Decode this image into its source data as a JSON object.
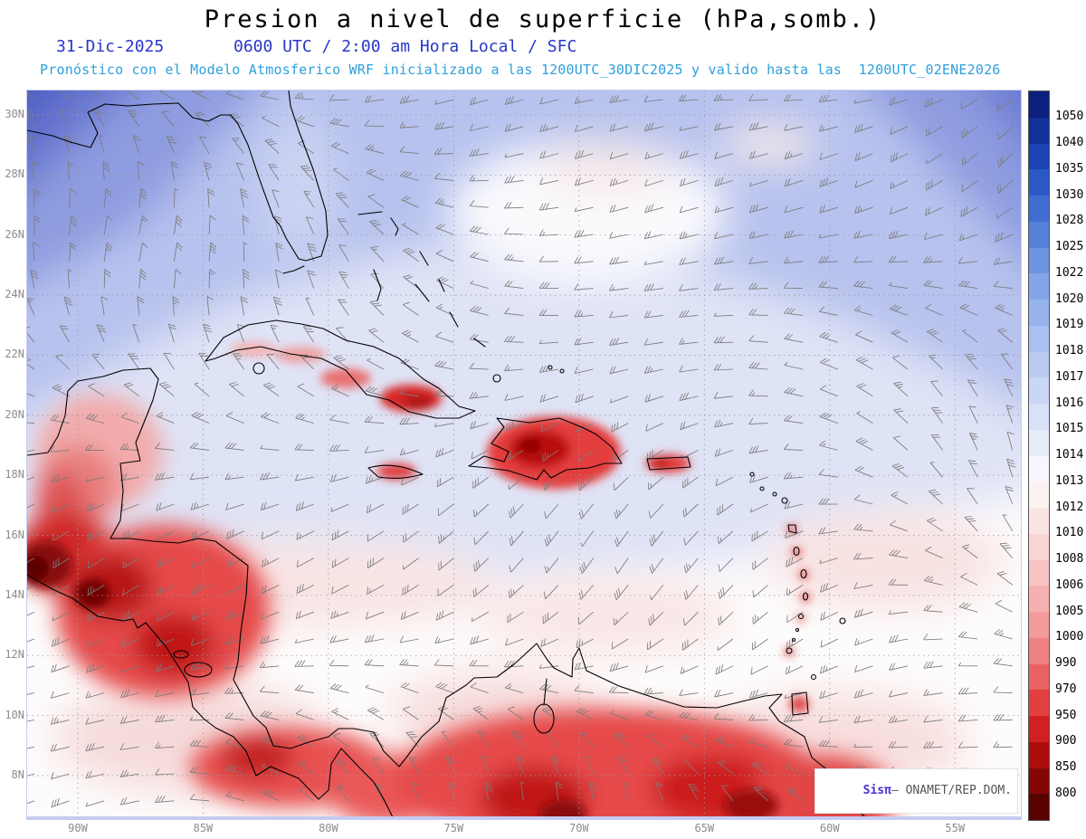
{
  "header": {
    "title": "Presion a nivel de superficie (hPa,somb.)",
    "date": "31-Dic-2025",
    "time": "0600 UTC / 2:00 am Hora Local / SFC",
    "forecast": "Pronóstico con el Modelo Atmosferico WRF inicializado a las 1200UTC_30DIC2025 y valido hasta las  1200UTC_02ENE2026"
  },
  "map": {
    "lat_labels": [
      "30N",
      "28N",
      "26N",
      "24N",
      "22N",
      "20N",
      "18N",
      "16N",
      "14N",
      "12N",
      "10N",
      "8N"
    ],
    "lon_labels": [
      "90W",
      "85W",
      "80W",
      "75W",
      "70W",
      "65W",
      "60W",
      "55W"
    ]
  },
  "colorbar": {
    "unit": "hPa",
    "labels": [
      "1050",
      "1040",
      "1035",
      "1030",
      "1028",
      "1025",
      "1022",
      "1020",
      "1019",
      "1018",
      "1017",
      "1016",
      "1015",
      "1014",
      "1013",
      "1012",
      "1010",
      "1008",
      "1006",
      "1005",
      "1000",
      "990",
      "970",
      "950",
      "900",
      "850",
      "800"
    ],
    "colors": [
      "#0b1f7c",
      "#10309b",
      "#1a44b4",
      "#2b58c4",
      "#3f6dd0",
      "#5581d8",
      "#6d94e0",
      "#84a5e7",
      "#97b3ec",
      "#a9c0f0",
      "#bacbf3",
      "#cad6f6",
      "#d9e1f8",
      "#e8edfb",
      "#f6f8fd",
      "#fdf2f2",
      "#fbe4e4",
      "#f9d4d4",
      "#f7c2c2",
      "#f5b0b0",
      "#f29b9b",
      "#ee8181",
      "#e96262",
      "#e24040",
      "#d02020",
      "#ad0d0d",
      "#840606",
      "#580202"
    ]
  },
  "credit": {
    "brand": "Sisπ",
    "text": "– ONAMET/REP.DOM."
  },
  "accent_colors": {
    "date_blue": "#2736c9",
    "forecast_cyan": "#2da0dc"
  }
}
